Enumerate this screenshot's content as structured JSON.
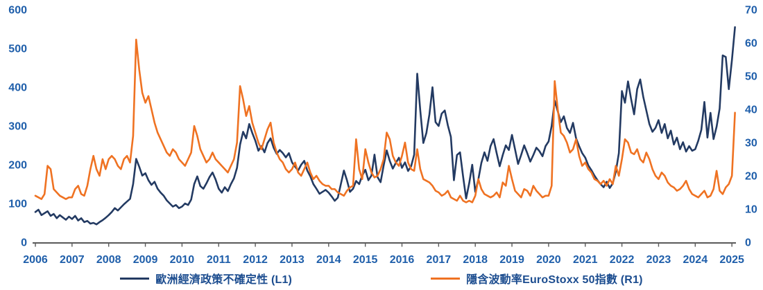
{
  "chart_data": {
    "type": "line",
    "title": "",
    "xlabel": "",
    "ylabel_left": "",
    "ylabel_right": "",
    "grid": false,
    "legend_position": "bottom",
    "x_frequency": "monthly",
    "x_start": "2006-01",
    "x_end": "2025-02",
    "x_tick_years": [
      2006,
      2007,
      2008,
      2009,
      2010,
      2011,
      2012,
      2013,
      2014,
      2015,
      2016,
      2017,
      2018,
      2019,
      2020,
      2021,
      2022,
      2023,
      2024,
      2025
    ],
    "axes": {
      "left": {
        "min": 0,
        "max": 600,
        "step": 100,
        "ticks": [
          0,
          100,
          200,
          300,
          400,
          500,
          600
        ]
      },
      "right": {
        "min": 0,
        "max": 70,
        "step": 10,
        "ticks": [
          0,
          10,
          20,
          30,
          40,
          50,
          60,
          70
        ]
      }
    },
    "series": [
      {
        "name": "歐洲經濟政策不確定性 (L1)",
        "axis": "left",
        "color": "#233A62",
        "values": [
          78,
          84,
          70,
          75,
          80,
          68,
          73,
          62,
          70,
          64,
          58,
          66,
          60,
          68,
          56,
          62,
          52,
          55,
          48,
          50,
          46,
          52,
          57,
          63,
          70,
          78,
          88,
          82,
          90,
          98,
          105,
          112,
          150,
          215,
          195,
          172,
          178,
          160,
          148,
          156,
          138,
          128,
          120,
          108,
          100,
          92,
          96,
          88,
          92,
          100,
          96,
          110,
          150,
          170,
          145,
          138,
          152,
          168,
          180,
          162,
          138,
          128,
          142,
          132,
          150,
          165,
          192,
          252,
          285,
          268,
          305,
          282,
          262,
          236,
          248,
          232,
          256,
          268,
          244,
          228,
          238,
          230,
          219,
          230,
          206,
          195,
          185,
          200,
          210,
          185,
          170,
          150,
          138,
          125,
          130,
          135,
          128,
          118,
          107,
          115,
          150,
          185,
          160,
          130,
          138,
          158,
          150,
          172,
          187,
          160,
          172,
          226,
          168,
          155,
          198,
          237,
          210,
          190,
          205,
          218,
          192,
          206,
          184,
          196,
          226,
          435,
          340,
          256,
          282,
          330,
          400,
          310,
          300,
          332,
          340,
          302,
          272,
          160,
          225,
          232,
          170,
          113,
          152,
          200,
          130,
          162,
          205,
          232,
          210,
          248,
          266,
          230,
          196,
          225,
          250,
          238,
          277,
          240,
          202,
          225,
          250,
          230,
          208,
          225,
          244,
          235,
          222,
          248,
          260,
          300,
          365,
          338,
          310,
          325,
          295,
          282,
          308,
          268,
          248,
          230,
          218,
          198,
          186,
          172,
          160,
          150,
          142,
          156,
          140,
          152,
          182,
          230,
          390,
          360,
          415,
          370,
          330,
          395,
          420,
          375,
          340,
          305,
          285,
          295,
          315,
          282,
          305,
          268,
          288,
          252,
          270,
          240,
          258,
          234,
          248,
          236,
          240,
          262,
          290,
          362,
          270,
          334,
          266,
          298,
          345,
          482,
          478,
          395,
          470,
          555
        ]
      },
      {
        "name": "隱含波動率EuroStoxx 50指數 (R1)",
        "axis": "right",
        "color": "#EF7222",
        "values": [
          14,
          13.5,
          13,
          14.5,
          23,
          22,
          16,
          15,
          14,
          13.5,
          13,
          13.5,
          13.5,
          16,
          17,
          14.5,
          14,
          17,
          22,
          26,
          22,
          20,
          25,
          22,
          25,
          26,
          25,
          23,
          22,
          25,
          26,
          24,
          32,
          61,
          52,
          45,
          42,
          44,
          40,
          36,
          33,
          31,
          29,
          27,
          26,
          28,
          27,
          25,
          24,
          23,
          25,
          27,
          35,
          32,
          28,
          26,
          24,
          25,
          27,
          25,
          24,
          23,
          22,
          21,
          23,
          25,
          30,
          47,
          43,
          38,
          41,
          36,
          33,
          30,
          28,
          31,
          34,
          36,
          30,
          27,
          25,
          24,
          22,
          21,
          22,
          24,
          21,
          20,
          22,
          24,
          21,
          19,
          20,
          18.5,
          17.5,
          17,
          17,
          16,
          16,
          15,
          14.5,
          14,
          15.5,
          16.5,
          17,
          31,
          22,
          19,
          28,
          24,
          21,
          19.5,
          20,
          22,
          25,
          33,
          31,
          26,
          24,
          23,
          26,
          30,
          24,
          22,
          21.5,
          28,
          22,
          19,
          18.5,
          18,
          17,
          15.5,
          15,
          14,
          14.5,
          15.5,
          13.5,
          13,
          12.5,
          14,
          12.5,
          12,
          12.5,
          12,
          14,
          19,
          16,
          14.5,
          14,
          13.5,
          14,
          15,
          13.5,
          18,
          17,
          23,
          19,
          15.5,
          14.5,
          13.5,
          16,
          15.5,
          14,
          17,
          15.5,
          14.5,
          13.5,
          14,
          14,
          17,
          48.5,
          40,
          33,
          32,
          30,
          27,
          28,
          31,
          26,
          23,
          24,
          22,
          21,
          19,
          18.5,
          17.5,
          18.5,
          17,
          19,
          17.5,
          23,
          20,
          25,
          31,
          30,
          27,
          26.5,
          28,
          25,
          24,
          27,
          25,
          22,
          20,
          19,
          21,
          20,
          18,
          17,
          16.5,
          15.5,
          16,
          17,
          18.5,
          16,
          14.5,
          14,
          13.5,
          14.5,
          15.5,
          13.5,
          14,
          16,
          21.5,
          15.5,
          14.5,
          16.5,
          17.5,
          20,
          39
        ]
      }
    ]
  },
  "colors": {
    "axis_label": "#1E5EAA",
    "axis_line": "#595959",
    "legend_text": "#1B4C8F",
    "background": "#FFFFFF"
  }
}
